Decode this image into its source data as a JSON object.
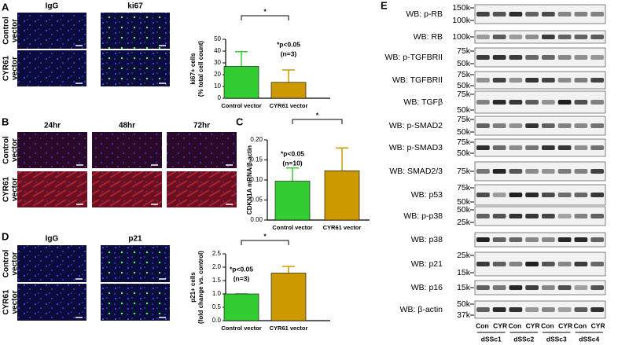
{
  "chart_data": [
    {
      "type": "bar",
      "ylabel": [
        "ki67+ cells",
        "(% total cell count)"
      ],
      "categories": [
        "Control vector",
        "CYR61 vector"
      ],
      "values": [
        27,
        13.5
      ],
      "errors": [
        12.5,
        10.5
      ],
      "colors": [
        "#33cc33",
        "#cc9900"
      ],
      "ylim": [
        0,
        50
      ],
      "yticks": [
        0,
        10,
        20,
        30,
        40,
        50
      ],
      "annotation": [
        "*p<0.05",
        "(n=3)"
      ],
      "significance": "*"
    },
    {
      "type": "bar",
      "ylabel": [
        "CDKN1A mRNA/β-actin"
      ],
      "categories": [
        "Control vector",
        "CYR61 vector"
      ],
      "values": [
        0.097,
        0.123
      ],
      "errors": [
        0.033,
        0.057
      ],
      "colors": [
        "#33cc33",
        "#cc9900"
      ],
      "ylim": [
        0,
        0.2
      ],
      "yticks": [
        {
          "value": 0,
          "label": "0.00"
        },
        {
          "value": 0.05,
          "label": "0.05"
        },
        {
          "value": 0.1,
          "label": "0.10"
        },
        {
          "value": 0.15,
          "label": "0.15"
        },
        {
          "value": 0.2,
          "label": "0.20"
        }
      ],
      "annotation": [
        "*p<0.05",
        "(n=10)"
      ],
      "significance": "*"
    },
    {
      "type": "bar",
      "ylabel": [
        "p21+ cells",
        "(fold change vs. control)"
      ],
      "categories": [
        "Control vector",
        "CYR61 vector"
      ],
      "values": [
        1.0,
        1.78
      ],
      "errors": [
        0,
        0.25
      ],
      "colors": [
        "#33cc33",
        "#cc9900"
      ],
      "ylim": [
        0,
        2.5
      ],
      "yticks": [
        {
          "value": 0,
          "label": "0.0"
        },
        {
          "value": 0.5,
          "label": "0.5"
        },
        {
          "value": 1,
          "label": "1.0"
        },
        {
          "value": 1.5,
          "label": "1.5"
        },
        {
          "value": 2,
          "label": "2.0"
        },
        {
          "value": 2.5,
          "label": "2.5"
        }
      ],
      "annotation": [
        "*p<0.05",
        "(n=3)"
      ],
      "significance": "*"
    }
  ],
  "panel_labels": [
    "A",
    "B",
    "C",
    "D",
    "E"
  ],
  "images": {
    "A": {
      "columns": [
        "IgG",
        "ki67"
      ],
      "rows": [
        [
          "Control",
          "vector"
        ],
        [
          "CYR61",
          "vector"
        ]
      ]
    },
    "B": {
      "columns": [
        "24hr",
        "48hr",
        "72hr"
      ],
      "rows": [
        [
          "Control",
          "vector"
        ],
        [
          "CYR61",
          "vector"
        ]
      ]
    },
    "D": {
      "columns": [
        "IgG",
        "p21"
      ],
      "rows": [
        [
          "Control",
          "vector"
        ],
        [
          "CYR61",
          "vector"
        ]
      ]
    }
  },
  "blot": {
    "rows": [
      {
        "label": "WB: p-RB",
        "ladder": [
          "150k",
          "100k"
        ]
      },
      {
        "label": "WB: RB",
        "ladder": [
          "100k"
        ]
      },
      {
        "label": "WB: p-TGFBRII",
        "ladder": [
          "75k",
          "50k"
        ]
      },
      {
        "label": "WB: TGFBRII",
        "ladder": [
          "75k",
          "50k"
        ]
      },
      {
        "label": "WB: TGFβ",
        "ladder": [
          "75k",
          "50k"
        ]
      },
      {
        "label": "WB: p-SMAD2",
        "ladder": [
          "75k",
          "50k"
        ]
      },
      {
        "label": "WB: p-SMAD3",
        "ladder": [
          "75k",
          "50k"
        ]
      },
      {
        "label": "WB: SMAD2/3",
        "ladder": [
          "75k"
        ]
      },
      {
        "label": "WB: p53",
        "ladder": [
          "75k",
          "50k"
        ]
      },
      {
        "label": "WB: p-p38",
        "ladder": [
          "50k",
          "25k"
        ]
      },
      {
        "label": "WB: p38",
        "ladder": []
      },
      {
        "label": "WB: p21",
        "ladder": [
          "25k",
          "15k"
        ]
      },
      {
        "label": "WB: p16",
        "ladder": [
          "15k"
        ]
      },
      {
        "label": "WB: β-actin",
        "ladder": [
          "50k",
          "37k"
        ]
      }
    ],
    "lane_labels": [
      "Con",
      "CYR"
    ],
    "groups": [
      "dSSc1",
      "dSSc2",
      "dSSc3",
      "dSSc4"
    ]
  }
}
